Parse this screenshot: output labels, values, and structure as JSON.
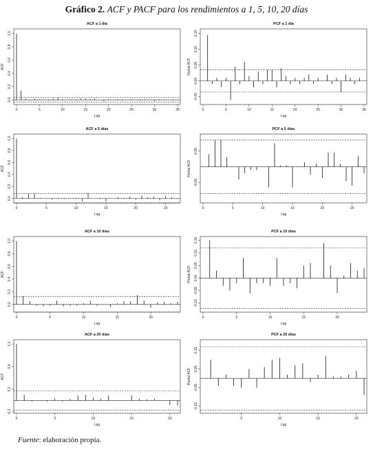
{
  "figure": {
    "label": "Gráfico 2.",
    "title": "ACF y PACF para los rendimientos a 1, 5, 10, 20 días",
    "source_label": "Fuente",
    "source_text": ": elaboración propia."
  },
  "chart_data": [
    {
      "type": "bar",
      "title": "ACF a 1 día",
      "xlabel": "Lag",
      "ylabel": "ACF",
      "xlim": [
        0,
        35
      ],
      "ylim": [
        -0.05,
        1.05
      ],
      "xticks": [
        0,
        5,
        10,
        15,
        20,
        25,
        30,
        35
      ],
      "yticks": [
        0.0,
        0.2,
        0.4,
        0.6,
        0.8,
        1.0
      ],
      "ytick_labels": [
        "0.0",
        "0.2",
        "0.4",
        "0.6",
        "0.8",
        "1.0"
      ],
      "ci": 0.035,
      "x": [
        0,
        1,
        2,
        3,
        4,
        5,
        6,
        7,
        8,
        9,
        10,
        11,
        12,
        13,
        14,
        15,
        16,
        17,
        18,
        19,
        20,
        21,
        22,
        23,
        24,
        25,
        26,
        27,
        28,
        29,
        30,
        31,
        32,
        33,
        34,
        35
      ],
      "values": [
        1.0,
        0.14,
        0.02,
        -0.01,
        0.02,
        0.01,
        0.0,
        -0.01,
        0.02,
        0.04,
        -0.01,
        0.0,
        0.01,
        -0.01,
        0.02,
        0.02,
        0.01,
        0.02,
        0.0,
        -0.02,
        0.01,
        0.0,
        0.01,
        -0.01,
        0.0,
        0.01,
        0.0,
        -0.01,
        0.01,
        0.0,
        -0.02,
        0.01,
        0.0,
        0.0,
        0.01,
        0.0
      ]
    },
    {
      "type": "bar",
      "title": "PCF a 1 día",
      "xlabel": "Lag",
      "ylabel": "Partial ACF",
      "xlim": [
        0,
        35
      ],
      "ylim": [
        -0.07,
        0.16
      ],
      "xticks": [
        0,
        5,
        10,
        15,
        20,
        25,
        30,
        35
      ],
      "yticks": [
        -0.05,
        0.0,
        0.05,
        0.1,
        0.15
      ],
      "ytick_labels": [
        "-0.05",
        "0.00",
        "0.05",
        "0.10",
        "0.15"
      ],
      "ci": 0.035,
      "x": [
        1,
        2,
        3,
        4,
        5,
        6,
        7,
        8,
        9,
        10,
        11,
        12,
        13,
        14,
        15,
        16,
        17,
        18,
        19,
        20,
        21,
        22,
        23,
        24,
        25,
        26,
        27,
        28,
        29,
        30,
        31,
        32,
        33,
        34
      ],
      "values": [
        0.145,
        -0.01,
        0.01,
        -0.02,
        0.01,
        -0.06,
        0.045,
        -0.01,
        0.06,
        0.015,
        -0.02,
        0.03,
        -0.01,
        0.035,
        0.035,
        -0.02,
        0.04,
        0.015,
        -0.01,
        0.01,
        -0.01,
        0.01,
        0.02,
        -0.01,
        0.01,
        0.0,
        0.02,
        -0.01,
        0.01,
        -0.035,
        0.02,
        0.01,
        -0.01,
        0.01
      ]
    },
    {
      "type": "bar",
      "title": "ACF a 5 días",
      "xlabel": "Lag",
      "ylabel": "ACF",
      "xlim": [
        0,
        27
      ],
      "ylim": [
        -0.05,
        1.05
      ],
      "xticks": [
        0,
        5,
        10,
        15,
        20,
        25
      ],
      "yticks": [
        0.0,
        0.2,
        0.4,
        0.6,
        0.8,
        1.0
      ],
      "ytick_labels": [
        "0.0",
        "0.2",
        "0.4",
        "0.6",
        "0.8",
        "1.0"
      ],
      "ci": 0.08,
      "x": [
        0,
        1,
        2,
        3,
        4,
        5,
        6,
        7,
        8,
        9,
        10,
        11,
        12,
        13,
        14,
        15,
        16,
        17,
        18,
        19,
        20,
        21,
        22,
        23,
        24,
        25,
        26,
        27
      ],
      "values": [
        1.0,
        0.02,
        0.08,
        0.08,
        0.01,
        0.0,
        -0.02,
        -0.01,
        -0.01,
        0.0,
        0.01,
        -0.05,
        0.09,
        0.0,
        0.01,
        -0.05,
        0.0,
        0.02,
        0.01,
        0.03,
        -0.02,
        0.05,
        0.02,
        0.03,
        -0.03,
        0.04,
        0.02,
        -0.01
      ]
    },
    {
      "type": "bar",
      "title": "PCF a 5 días",
      "xlabel": "Lag",
      "ylabel": "Partial ACF",
      "xlim": [
        0,
        27
      ],
      "ylim": [
        -0.11,
        0.1
      ],
      "xticks": [
        0,
        5,
        10,
        15,
        20,
        25
      ],
      "yticks": [
        -0.05,
        0.05
      ],
      "ytick_labels": [
        "-0.05",
        "0.05"
      ],
      "ci": 0.085,
      "x": [
        1,
        2,
        3,
        4,
        5,
        6,
        7,
        8,
        9,
        10,
        11,
        12,
        13,
        14,
        15,
        16,
        17,
        18,
        19,
        20,
        21,
        22,
        23,
        24,
        25,
        26,
        27
      ],
      "values": [
        0.04,
        0.085,
        0.085,
        0.03,
        0.0,
        -0.04,
        -0.02,
        -0.01,
        -0.01,
        0.0,
        -0.065,
        0.075,
        0.005,
        0.005,
        -0.065,
        0.0,
        0.015,
        -0.025,
        0.01,
        -0.035,
        0.045,
        0.045,
        0.01,
        -0.045,
        -0.06,
        0.035,
        -0.02
      ]
    },
    {
      "type": "bar",
      "title": "ACF a 10 días",
      "xlabel": "Lag",
      "ylabel": "ACF",
      "xlim": [
        0,
        24
      ],
      "ylim": [
        -0.1,
        1.05
      ],
      "xticks": [
        0,
        5,
        10,
        15,
        20
      ],
      "yticks": [
        0.0,
        0.2,
        0.4,
        0.6,
        0.8,
        1.0
      ],
      "ytick_labels": [
        "0.0",
        "0.2",
        "0.4",
        "0.6",
        "0.8",
        "1.0"
      ],
      "ci": 0.12,
      "x": [
        0,
        1,
        2,
        3,
        4,
        5,
        6,
        7,
        8,
        9,
        10,
        11,
        12,
        13,
        14,
        15,
        16,
        17,
        18,
        19,
        20,
        21,
        22,
        23,
        24
      ],
      "values": [
        1.0,
        0.13,
        0.05,
        -0.02,
        -0.03,
        -0.02,
        0.06,
        -0.03,
        -0.02,
        -0.02,
        0.02,
        0.06,
        -0.02,
        0.0,
        -0.04,
        0.02,
        0.05,
        0.05,
        0.15,
        0.06,
        -0.05,
        0.03,
        0.04,
        0.02,
        0.04
      ]
    },
    {
      "type": "bar",
      "title": "PCF a 10 días",
      "xlabel": "Lag",
      "ylabel": "Partial ACF",
      "xlim": [
        0,
        24
      ],
      "ylim": [
        -0.13,
        0.16
      ],
      "xticks": [
        0,
        5,
        10,
        15,
        20
      ],
      "yticks": [
        -0.1,
        -0.05,
        0.0,
        0.05,
        0.1,
        0.15
      ],
      "ytick_labels": [
        "-0.10",
        "-0.05",
        "0.00",
        "0.05",
        "0.10",
        "0.15"
      ],
      "ci": 0.12,
      "x": [
        1,
        2,
        3,
        4,
        5,
        6,
        7,
        8,
        9,
        10,
        11,
        12,
        13,
        14,
        15,
        16,
        17,
        18,
        19,
        20,
        21,
        22,
        23,
        24
      ],
      "values": [
        0.15,
        0.03,
        -0.03,
        -0.05,
        -0.02,
        0.08,
        -0.06,
        -0.02,
        -0.02,
        -0.03,
        0.08,
        -0.03,
        -0.02,
        -0.04,
        0.05,
        0.06,
        0.0,
        0.14,
        0.05,
        -0.06,
        0.01,
        0.06,
        0.03,
        0.04
      ]
    },
    {
      "type": "bar",
      "title": "ACF a 20 días",
      "xlabel": "Lag",
      "ylabel": "ACF",
      "xlim": [
        0,
        21
      ],
      "ylim": [
        -0.2,
        1.05
      ],
      "xticks": [
        0,
        5,
        10,
        15,
        20
      ],
      "yticks": [
        -0.2,
        0.2,
        0.6,
        1.0
      ],
      "ytick_labels": [
        "-0.2",
        "0.2",
        "0.6",
        "1.0"
      ],
      "ci": 0.17,
      "x": [
        0,
        1,
        2,
        3,
        4,
        5,
        6,
        7,
        8,
        9,
        10,
        11,
        12,
        13,
        14,
        15,
        16,
        17,
        18,
        19,
        20,
        21
      ],
      "values": [
        1.0,
        0.1,
        -0.02,
        0.0,
        -0.02,
        0.04,
        -0.02,
        0.03,
        0.09,
        0.1,
        0.05,
        0.03,
        0.09,
        0.0,
        0.0,
        0.09,
        0.03,
        0.02,
        0.03,
        0.0,
        -0.08,
        -0.09
      ]
    },
    {
      "type": "bar",
      "title": "PCF a 20 días",
      "xlabel": "Lag",
      "ylabel": "Partial ACF",
      "xlim": [
        0,
        21
      ],
      "ylim": [
        -0.18,
        0.2
      ],
      "xticks": [
        5,
        10,
        15,
        20
      ],
      "yticks": [
        -0.15,
        -0.05,
        0.05,
        0.15
      ],
      "ytick_labels": [
        "-0.15",
        "-0.05",
        "0.05",
        "0.15"
      ],
      "ci": 0.17,
      "x": [
        1,
        2,
        3,
        4,
        5,
        6,
        7,
        8,
        9,
        10,
        11,
        12,
        13,
        14,
        15,
        16,
        17,
        18,
        19,
        20,
        21
      ],
      "values": [
        0.1,
        -0.04,
        0.02,
        -0.04,
        -0.05,
        0.05,
        -0.05,
        0.06,
        0.1,
        0.11,
        0.02,
        0.07,
        0.08,
        -0.02,
        0.02,
        0.12,
        0.01,
        0.01,
        0.02,
        0.04,
        -0.09
      ]
    }
  ]
}
